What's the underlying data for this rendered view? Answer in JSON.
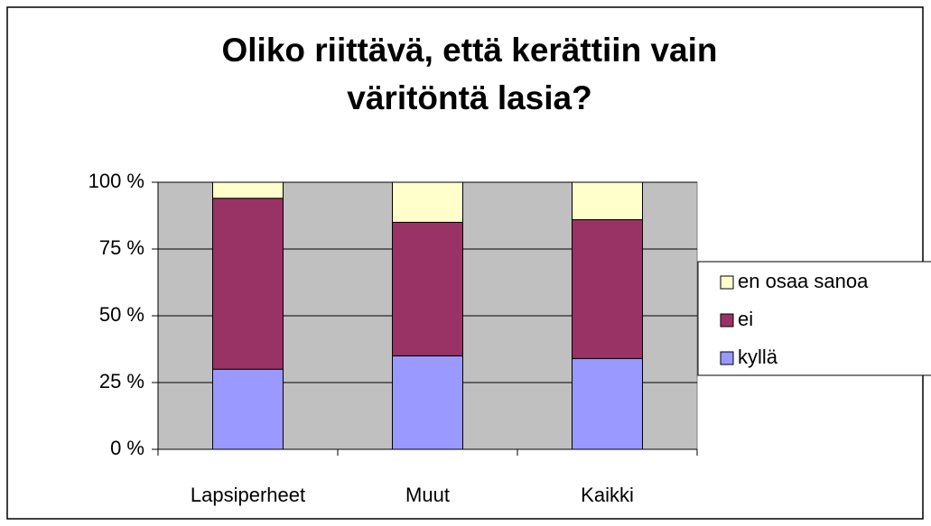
{
  "chart_data": {
    "type": "stacked_bar",
    "title": [
      "Oliko riittävä, että kerättiin vain",
      "väritöntä lasia?"
    ],
    "categories": [
      "Lapsiperheet",
      "Muut",
      "Kaikki"
    ],
    "series": [
      {
        "name": "kyllä",
        "color": "#9999ff",
        "values": [
          30,
          35,
          34
        ]
      },
      {
        "name": "ei",
        "color": "#993366",
        "values": [
          64,
          50,
          52
        ]
      },
      {
        "name": "en osaa sanoa",
        "color": "#ffffcc",
        "values": [
          6,
          15,
          14
        ]
      }
    ],
    "ylim": [
      0,
      100
    ],
    "yticks": [
      {
        "value": 0,
        "label": "0 %"
      },
      {
        "value": 25,
        "label": "25 %"
      },
      {
        "value": 50,
        "label": "50 %"
      },
      {
        "value": 75,
        "label": "75 %"
      },
      {
        "value": 100,
        "label": "100 %"
      }
    ],
    "grid": true,
    "plot_background": "#c0c0c0",
    "legend": "right"
  }
}
